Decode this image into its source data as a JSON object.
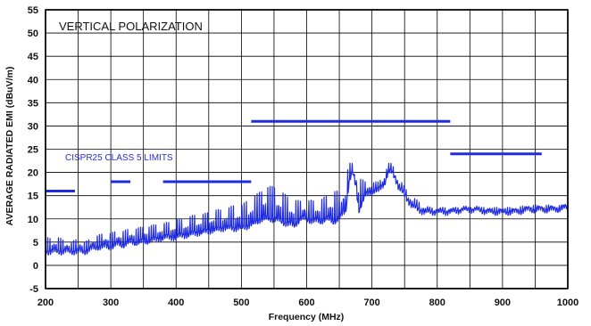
{
  "chart_data": {
    "type": "line",
    "title": "VERTICAL POLARIZATION",
    "xlabel": "Frequency (MHz)",
    "ylabel": "AVERAGE RADIATED EMI (dBuV/m)",
    "xlim": [
      200,
      1000
    ],
    "ylim": [
      -5,
      55
    ],
    "xticks": [
      "200",
      "300",
      "400",
      "500",
      "600",
      "700",
      "800",
      "900",
      "1000"
    ],
    "yticks": [
      "55",
      "50",
      "45",
      "40",
      "35",
      "30",
      "25",
      "20",
      "15",
      "10",
      "5",
      "0",
      "-5"
    ],
    "grid": true,
    "annotation": "CISPR25 CLASS 5 LIMITS",
    "colors": {
      "series": "#1f2be0",
      "limits": "#1f2be0",
      "grid": "#000000"
    },
    "limits": [
      {
        "x": [
          200,
          245
        ],
        "y": 16
      },
      {
        "x": [
          300,
          330
        ],
        "y": 18
      },
      {
        "x": [
          380,
          515
        ],
        "y": 18
      },
      {
        "x": [
          515,
          820
        ],
        "y": 31
      },
      {
        "x": [
          820,
          960
        ],
        "y": 24
      }
    ],
    "series": [
      {
        "x": [
          200,
          210,
          220,
          230,
          240,
          250,
          260,
          270,
          280,
          290,
          300,
          310,
          320,
          330,
          340,
          350,
          360,
          370,
          380,
          390,
          400,
          410,
          420,
          430,
          440,
          450,
          460,
          470,
          480,
          490,
          500,
          510,
          520,
          530,
          540,
          550,
          560,
          570,
          580,
          590,
          600,
          610,
          620,
          630,
          640,
          650,
          660,
          665,
          670,
          675,
          680,
          690,
          700,
          710,
          720,
          725,
          730,
          735,
          740,
          750,
          760,
          770,
          780,
          790,
          800,
          820,
          840,
          860,
          880,
          900,
          920,
          940,
          960,
          980,
          1000
        ],
        "y": [
          3,
          3,
          3,
          3,
          3,
          3,
          3,
          3.5,
          4,
          4,
          4,
          4.5,
          4.5,
          5,
          5,
          5,
          5.5,
          5.5,
          6,
          6,
          6,
          6.5,
          6.5,
          7,
          7,
          7.5,
          7.5,
          8,
          8,
          8,
          8,
          8.5,
          9,
          10,
          10,
          10,
          9.5,
          9,
          8.5,
          10,
          10,
          9.5,
          9.5,
          10,
          9.5,
          10,
          12,
          18,
          20,
          17,
          12,
          15,
          16,
          16,
          18,
          20,
          20,
          19,
          17,
          15,
          13,
          12,
          11.5,
          11.5,
          11.5,
          11.5,
          12,
          12,
          11.5,
          11.5,
          11.5,
          12,
          12,
          12,
          12.5
        ],
        "peaks": [
          6,
          6,
          6,
          5.5,
          5,
          6,
          5,
          6,
          6.5,
          7,
          7,
          7.5,
          7.5,
          8,
          8,
          8.5,
          8.5,
          9,
          9,
          9.5,
          10,
          10,
          10.5,
          11,
          11,
          11.5,
          12,
          12,
          12.5,
          13,
          13,
          14,
          15,
          16,
          17,
          17,
          16,
          15,
          14,
          14,
          14,
          14,
          14,
          15,
          16,
          16,
          19,
          22,
          22,
          21,
          19,
          18,
          18,
          18,
          20,
          22,
          22,
          21,
          19,
          17,
          15,
          14,
          13,
          12.5,
          12.5,
          12.5,
          12.5,
          12.5,
          12.5,
          12.5,
          12.5,
          13,
          13,
          13,
          13
        ]
      }
    ]
  }
}
